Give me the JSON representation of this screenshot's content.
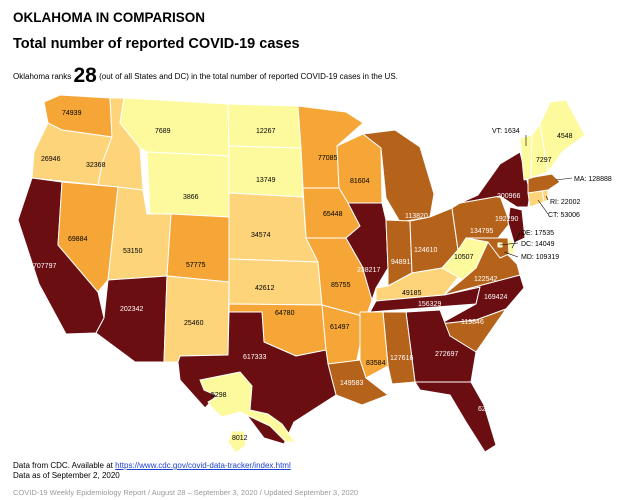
{
  "header": {
    "title": "OKLAHOMA IN COMPARISON",
    "subtitle": "Total number of reported COVID-19 cases",
    "rank_prefix": "Oklahoma ranks",
    "rank_number": "28",
    "rank_suffix": "(out of all States and DC) in the total number of reported COVID-19 cases in the US."
  },
  "colors": {
    "very_low": "#fdfa9e",
    "low": "#fed47a",
    "medium": "#f5a637",
    "high": "#b5621a",
    "very_high": "#6b0e12",
    "border": "#ffffff"
  },
  "states": [
    {
      "id": "WA",
      "value": "74939",
      "level": "medium"
    },
    {
      "id": "OR",
      "value": "26946",
      "level": "low"
    },
    {
      "id": "ID",
      "value": "32368",
      "level": "low"
    },
    {
      "id": "MT",
      "value": "7689",
      "level": "very_low"
    },
    {
      "id": "ND",
      "value": "12267",
      "level": "very_low"
    },
    {
      "id": "SD",
      "value": "13749",
      "level": "very_low"
    },
    {
      "id": "WY",
      "value": "3866",
      "level": "very_low"
    },
    {
      "id": "MN",
      "value": "77085",
      "level": "medium"
    },
    {
      "id": "WI",
      "value": "81604",
      "level": "medium"
    },
    {
      "id": "MI",
      "value": "113820",
      "level": "high"
    },
    {
      "id": "IA",
      "value": "65448",
      "level": "medium"
    },
    {
      "id": "NE",
      "value": "34574",
      "level": "low"
    },
    {
      "id": "CA",
      "value": "707797",
      "level": "very_high"
    },
    {
      "id": "NV",
      "value": "69884",
      "level": "medium"
    },
    {
      "id": "UT",
      "value": "53150",
      "level": "low"
    },
    {
      "id": "CO",
      "value": "57775",
      "level": "medium"
    },
    {
      "id": "KS",
      "value": "42612",
      "level": "low"
    },
    {
      "id": "MO",
      "value": "85755",
      "level": "medium"
    },
    {
      "id": "IL",
      "value": "238217",
      "level": "very_high"
    },
    {
      "id": "IN",
      "value": "94891",
      "level": "high"
    },
    {
      "id": "OH",
      "value": "124610",
      "level": "high"
    },
    {
      "id": "KY",
      "value": "49185",
      "level": "low"
    },
    {
      "id": "WV",
      "value": "10507",
      "level": "very_low"
    },
    {
      "id": "AZ",
      "value": "202342",
      "level": "very_high"
    },
    {
      "id": "NM",
      "value": "25460",
      "level": "low"
    },
    {
      "id": "OK",
      "value": "64780",
      "level": "medium"
    },
    {
      "id": "AR",
      "value": "61497",
      "level": "medium"
    },
    {
      "id": "TN",
      "value": "156329",
      "level": "very_high"
    },
    {
      "id": "NC",
      "value": "169424",
      "level": "very_high"
    },
    {
      "id": "VA",
      "value": "122542",
      "level": "high"
    },
    {
      "id": "SC",
      "value": "119846",
      "level": "high"
    },
    {
      "id": "GA",
      "value": "272697",
      "level": "very_high"
    },
    {
      "id": "AL",
      "value": "127616",
      "level": "high"
    },
    {
      "id": "MS",
      "value": "83584",
      "level": "medium"
    },
    {
      "id": "LA",
      "value": "149583",
      "level": "high"
    },
    {
      "id": "TX",
      "value": "617333",
      "level": "very_high"
    },
    {
      "id": "FL",
      "value": "624116",
      "level": "very_high"
    },
    {
      "id": "PA",
      "value": "134795",
      "level": "high"
    },
    {
      "id": "NY",
      "value": "200966",
      "level": "very_high"
    },
    {
      "id": "NJ",
      "value": "192290",
      "level": "very_high"
    },
    {
      "id": "DE",
      "value": "17535",
      "level": "very_low"
    },
    {
      "id": "MD",
      "value": "109319",
      "level": "high"
    },
    {
      "id": "DC",
      "value": "14049",
      "level": "very_low"
    },
    {
      "id": "CT",
      "value": "53006",
      "level": "low"
    },
    {
      "id": "RI",
      "value": "22002",
      "level": "low"
    },
    {
      "id": "MA",
      "value": "128888",
      "level": "high"
    },
    {
      "id": "VT",
      "value": "1634",
      "level": "very_low"
    },
    {
      "id": "NH",
      "value": "7297",
      "level": "very_low"
    },
    {
      "id": "ME",
      "value": "4548",
      "level": "very_low"
    },
    {
      "id": "AK",
      "value": "5298",
      "level": "very_low"
    },
    {
      "id": "HI",
      "value": "8012",
      "level": "very_low"
    }
  ],
  "callouts": {
    "VT": "VT: 1634",
    "MA": "MA: 128888",
    "RI": "RI: 22002",
    "CT": "CT: 53006",
    "DE": "DE: 17535",
    "DC": "DC: 14049",
    "MD": "MD: 109319"
  },
  "source": {
    "prefix": "Data from CDC. Available at ",
    "link": "https://www.cdc.gov/covid-data-tracker/index.html",
    "as_of": "Data as of September 2, 2020"
  },
  "footer": "COVID-19 Weekly Epidemiology Report / August 28 – September 3, 2020 / Updated September 3, 2020"
}
